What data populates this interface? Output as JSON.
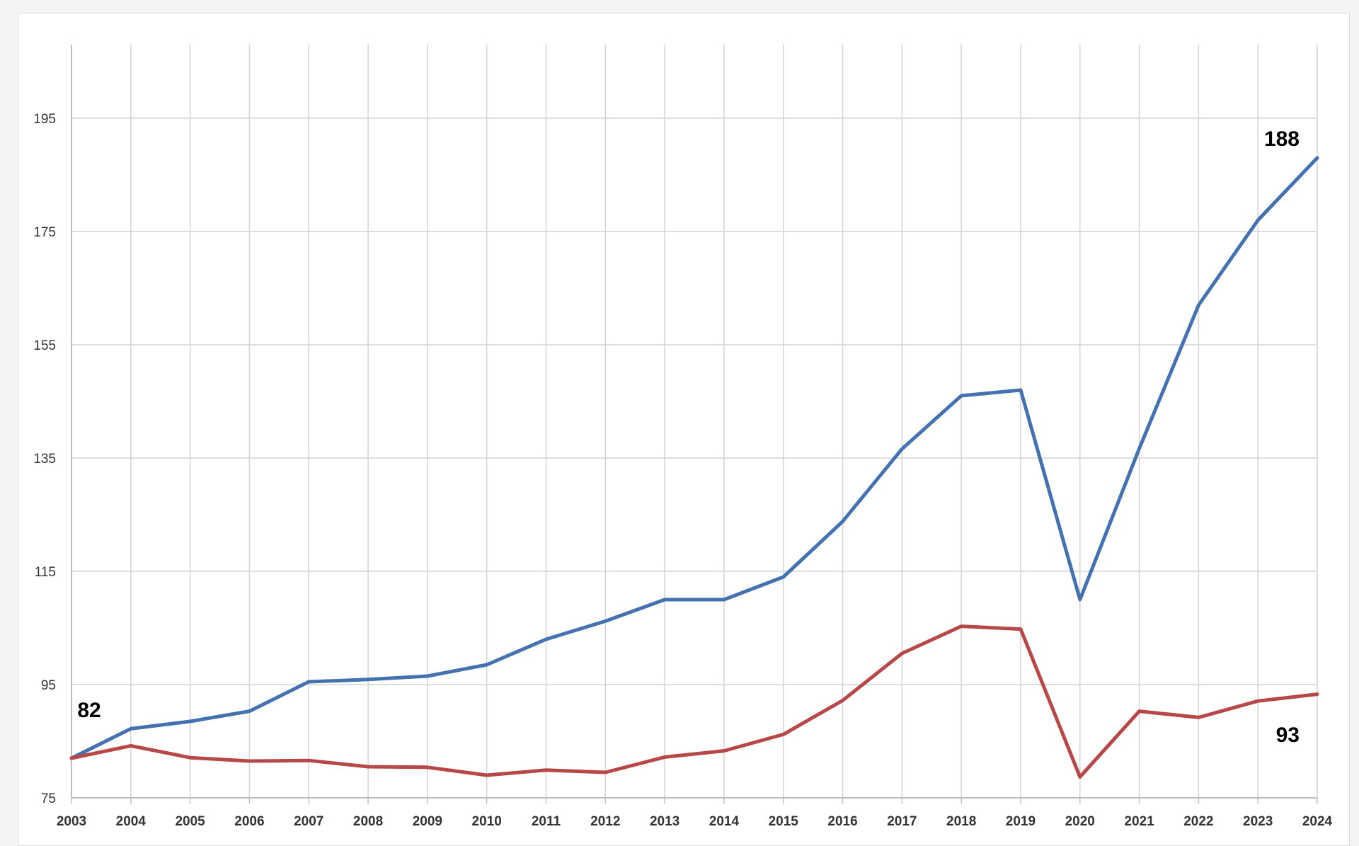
{
  "chart_data": {
    "type": "line",
    "title": "",
    "xlabel": "",
    "ylabel": "",
    "x": [
      2003,
      2004,
      2005,
      2006,
      2007,
      2008,
      2009,
      2010,
      2011,
      2012,
      2013,
      2014,
      2015,
      2016,
      2017,
      2018,
      2019,
      2020,
      2021,
      2022,
      2023,
      2024
    ],
    "ylim": [
      75,
      208
    ],
    "yticks": [
      75,
      95,
      115,
      135,
      155,
      175,
      195
    ],
    "grid": true,
    "legend": "none",
    "series": [
      {
        "color": "#4472b0",
        "values": [
          82,
          87.2,
          88.5,
          90.3,
          95.5,
          95.9,
          96.5,
          98.5,
          103,
          106.2,
          110,
          110,
          114,
          123.8,
          136.6,
          146,
          147,
          110,
          136.7,
          162,
          177,
          188
        ]
      },
      {
        "color": "#b84848",
        "values": [
          82,
          84.2,
          82.1,
          81.5,
          81.6,
          80.5,
          80.4,
          79,
          79.9,
          79.5,
          82.2,
          83.3,
          86.2,
          92.2,
          100.5,
          105.3,
          104.8,
          78.7,
          90.3,
          89.2,
          92.1,
          93.3
        ]
      }
    ],
    "annotations": [
      {
        "text": "82",
        "x": 2003,
        "y": 82
      },
      {
        "text": "188",
        "x": 2024,
        "y": 188
      },
      {
        "text": "93",
        "x": 2024,
        "y": 93
      }
    ]
  }
}
